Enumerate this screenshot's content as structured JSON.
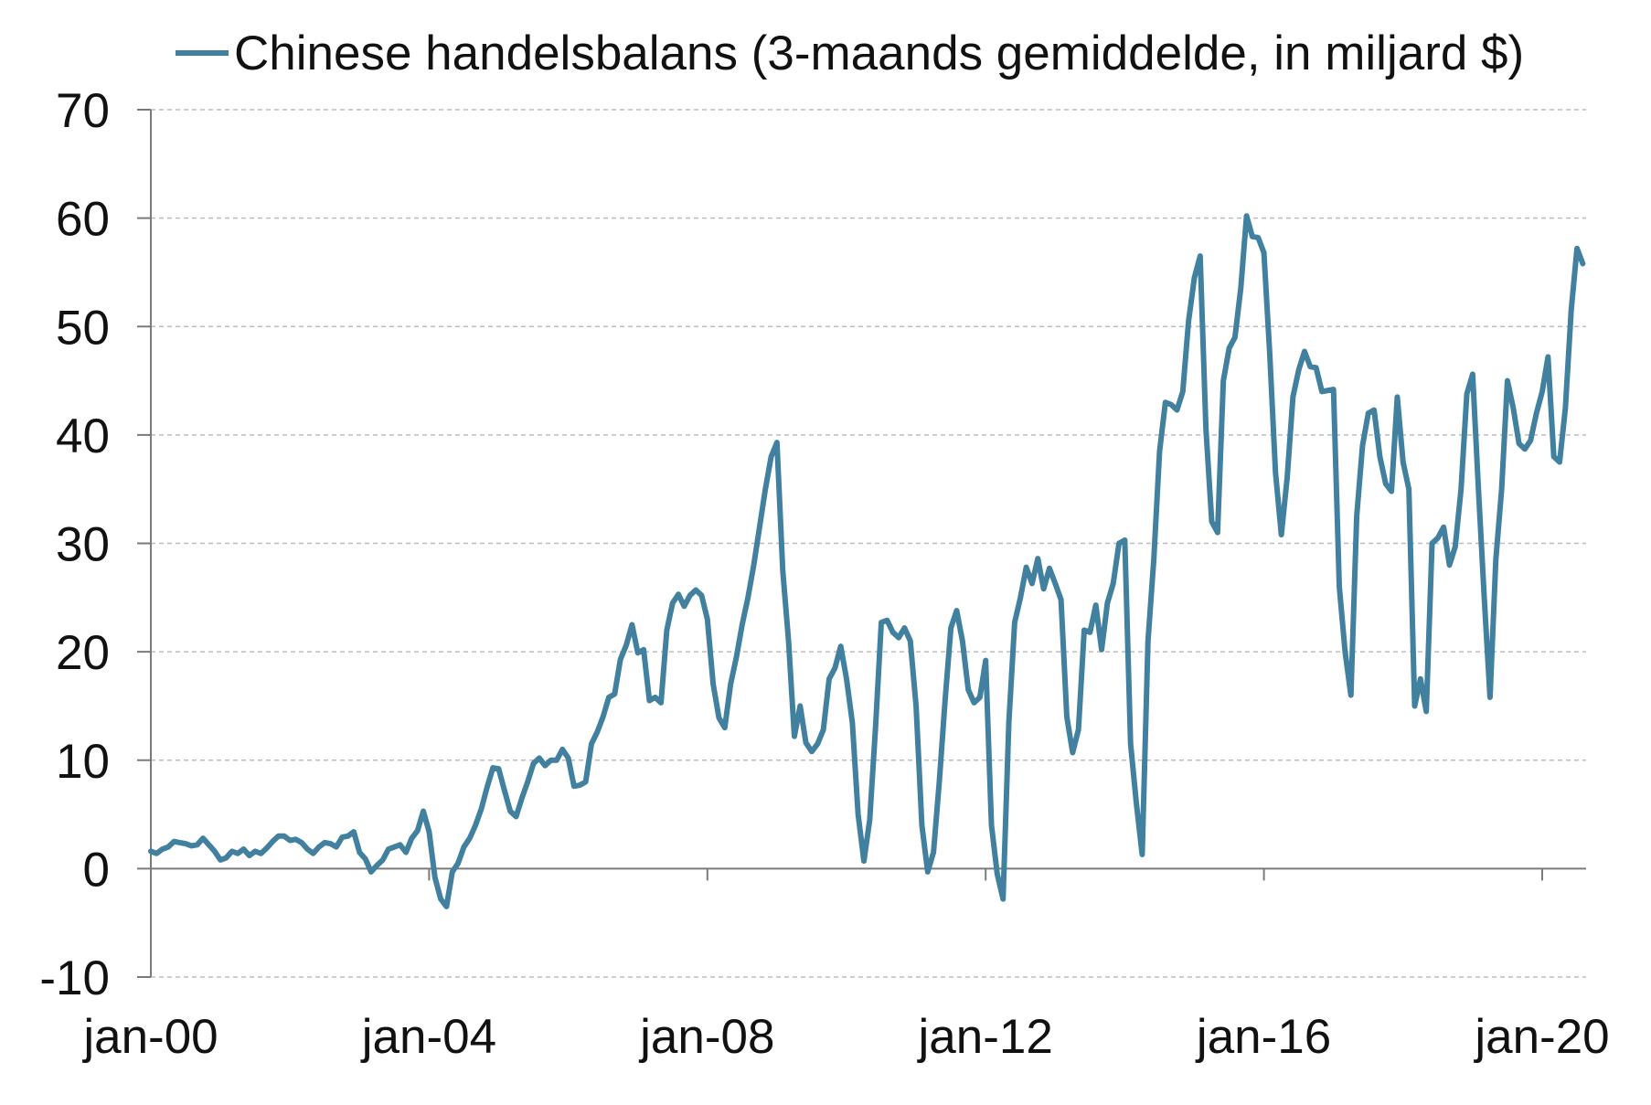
{
  "chart_data": {
    "type": "line",
    "ylim": [
      -10,
      70
    ],
    "yticks": [
      70,
      60,
      50,
      40,
      30,
      20,
      10,
      0,
      -10
    ],
    "xticks": [
      {
        "label": "jan-00",
        "date": "2000-01"
      },
      {
        "label": "jan-04",
        "date": "2004-01"
      },
      {
        "label": "jan-08",
        "date": "2008-01"
      },
      {
        "label": "jan-12",
        "date": "2012-01"
      },
      {
        "label": "jan-16",
        "date": "2016-01"
      },
      {
        "label": "jan-20",
        "date": "2020-01"
      }
    ],
    "grid": true,
    "legend_position": "top",
    "x": [
      "2000-01",
      "2000-02",
      "2000-03",
      "2000-04",
      "2000-05",
      "2000-06",
      "2000-07",
      "2000-08",
      "2000-09",
      "2000-10",
      "2000-11",
      "2000-12",
      "2001-01",
      "2001-02",
      "2001-03",
      "2001-04",
      "2001-05",
      "2001-06",
      "2001-07",
      "2001-08",
      "2001-09",
      "2001-10",
      "2001-11",
      "2001-12",
      "2002-01",
      "2002-02",
      "2002-03",
      "2002-04",
      "2002-05",
      "2002-06",
      "2002-07",
      "2002-08",
      "2002-09",
      "2002-10",
      "2002-11",
      "2002-12",
      "2003-01",
      "2003-02",
      "2003-03",
      "2003-04",
      "2003-05",
      "2003-06",
      "2003-07",
      "2003-08",
      "2003-09",
      "2003-10",
      "2003-11",
      "2003-12",
      "2004-01",
      "2004-02",
      "2004-03",
      "2004-04",
      "2004-05",
      "2004-06",
      "2004-07",
      "2004-08",
      "2004-09",
      "2004-10",
      "2004-11",
      "2004-12",
      "2005-01",
      "2005-02",
      "2005-03",
      "2005-04",
      "2005-05",
      "2005-06",
      "2005-07",
      "2005-08",
      "2005-09",
      "2005-10",
      "2005-11",
      "2005-12",
      "2006-01",
      "2006-02",
      "2006-03",
      "2006-04",
      "2006-05",
      "2006-06",
      "2006-07",
      "2006-08",
      "2006-09",
      "2006-10",
      "2006-11",
      "2006-12",
      "2007-01",
      "2007-02",
      "2007-03",
      "2007-04",
      "2007-05",
      "2007-06",
      "2007-07",
      "2007-08",
      "2007-09",
      "2007-10",
      "2007-11",
      "2007-12",
      "2008-01",
      "2008-02",
      "2008-03",
      "2008-04",
      "2008-05",
      "2008-06",
      "2008-07",
      "2008-08",
      "2008-09",
      "2008-10",
      "2008-11",
      "2008-12",
      "2009-01",
      "2009-02",
      "2009-03",
      "2009-04",
      "2009-05",
      "2009-06",
      "2009-07",
      "2009-08",
      "2009-09",
      "2009-10",
      "2009-11",
      "2009-12",
      "2010-01",
      "2010-02",
      "2010-03",
      "2010-04",
      "2010-05",
      "2010-06",
      "2010-07",
      "2010-08",
      "2010-09",
      "2010-10",
      "2010-11",
      "2010-12",
      "2011-01",
      "2011-02",
      "2011-03",
      "2011-04",
      "2011-05",
      "2011-06",
      "2011-07",
      "2011-08",
      "2011-09",
      "2011-10",
      "2011-11",
      "2011-12",
      "2012-01",
      "2012-02",
      "2012-03",
      "2012-04",
      "2012-05",
      "2012-06",
      "2012-07",
      "2012-08",
      "2012-09",
      "2012-10",
      "2012-11",
      "2012-12",
      "2013-01",
      "2013-02",
      "2013-03",
      "2013-04",
      "2013-05",
      "2013-06",
      "2013-07",
      "2013-08",
      "2013-09",
      "2013-10",
      "2013-11",
      "2013-12",
      "2014-01",
      "2014-02",
      "2014-03",
      "2014-04",
      "2014-05",
      "2014-06",
      "2014-07",
      "2014-08",
      "2014-09",
      "2014-10",
      "2014-11",
      "2014-12",
      "2015-01",
      "2015-02",
      "2015-03",
      "2015-04",
      "2015-05",
      "2015-06",
      "2015-07",
      "2015-08",
      "2015-09",
      "2015-10",
      "2015-11",
      "2015-12",
      "2016-01",
      "2016-02",
      "2016-03",
      "2016-04",
      "2016-05",
      "2016-06",
      "2016-07",
      "2016-08",
      "2016-09",
      "2016-10",
      "2016-11",
      "2016-12",
      "2017-01",
      "2017-02",
      "2017-03",
      "2017-04",
      "2017-05",
      "2017-06",
      "2017-07",
      "2017-08",
      "2017-09",
      "2017-10",
      "2017-11",
      "2017-12",
      "2018-01",
      "2018-02",
      "2018-03",
      "2018-04",
      "2018-05",
      "2018-06",
      "2018-07",
      "2018-08",
      "2018-09",
      "2018-10",
      "2018-11",
      "2018-12",
      "2019-01",
      "2019-02",
      "2019-03",
      "2019-04",
      "2019-05",
      "2019-06",
      "2019-07",
      "2019-08",
      "2019-09",
      "2019-10",
      "2019-11",
      "2019-12",
      "2020-01",
      "2020-02",
      "2020-03",
      "2020-04",
      "2020-05",
      "2020-06",
      "2020-07",
      "2020-08"
    ],
    "series": [
      {
        "name": "Chinese handelsbalans (3-maands gemiddelde, in miljard $)",
        "color": "#41809f",
        "values": [
          1.6,
          1.4,
          1.8,
          2.0,
          2.5,
          2.4,
          2.3,
          2.1,
          2.2,
          2.8,
          2.2,
          1.6,
          0.8,
          1.0,
          1.6,
          1.4,
          1.8,
          1.2,
          1.6,
          1.4,
          1.9,
          2.5,
          3.0,
          3.0,
          2.6,
          2.7,
          2.4,
          1.8,
          1.4,
          2.0,
          2.4,
          2.3,
          2.0,
          2.9,
          3.0,
          3.4,
          1.5,
          0.9,
          -0.3,
          0.3,
          0.8,
          1.8,
          2.0,
          2.2,
          1.5,
          2.8,
          3.5,
          5.3,
          3.4,
          -0.8,
          -2.8,
          -3.5,
          -0.3,
          0.5,
          2.0,
          2.8,
          4.0,
          5.5,
          7.5,
          9.3,
          9.2,
          7.2,
          5.3,
          4.8,
          6.5,
          8.0,
          9.7,
          10.2,
          9.5,
          10.0,
          10.0,
          11.0,
          10.2,
          7.6,
          7.7,
          8.0,
          11.5,
          12.6,
          14.0,
          15.8,
          16.1,
          19.3,
          20.6,
          22.5,
          19.9,
          20.2,
          15.5,
          15.8,
          15.3,
          22.0,
          24.5,
          25.3,
          24.2,
          25.2,
          25.7,
          25.2,
          23.0,
          17.0,
          13.9,
          13.0,
          17.0,
          19.5,
          22.5,
          25.0,
          28.0,
          31.5,
          35.0,
          38.0,
          39.3,
          27.5,
          21.0,
          12.2,
          15.0,
          11.6,
          10.8,
          11.5,
          12.8,
          17.5,
          18.5,
          20.5,
          17.5,
          13.5,
          5.0,
          0.7,
          4.5,
          13.0,
          22.7,
          22.9,
          21.8,
          21.3,
          22.2,
          21.0,
          15.0,
          4.0,
          -0.3,
          1.5,
          8.0,
          15.5,
          22.2,
          23.8,
          21.0,
          16.5,
          15.3,
          15.8,
          19.2,
          4.0,
          -0.5,
          -2.8,
          13.5,
          22.7,
          25.0,
          27.8,
          26.3,
          28.6,
          25.8,
          27.7,
          26.3,
          24.8,
          14.0,
          10.7,
          12.8,
          22.0,
          21.8,
          24.3,
          20.2,
          24.5,
          26.3,
          30.0,
          30.3,
          11.5,
          6.0,
          1.3,
          21.0,
          28.5,
          38.5,
          43.0,
          42.8,
          42.3,
          44.0,
          50.5,
          54.5,
          56.5,
          40.5,
          32.0,
          31.0,
          45.0,
          48.0,
          49.0,
          53.5,
          60.2,
          58.3,
          58.2,
          56.8,
          47.5,
          36.5,
          30.8,
          36.0,
          43.5,
          46.0,
          47.7,
          46.3,
          46.2,
          44.0,
          44.1,
          44.2,
          26.0,
          20.0,
          16.0,
          32.5,
          39.0,
          42.0,
          42.3,
          38.0,
          35.5,
          34.8,
          43.5,
          37.5,
          35.0,
          15.0,
          17.5,
          14.5,
          30.0,
          30.5,
          31.5,
          28.0,
          29.7,
          35.0,
          43.8,
          45.6,
          35.0,
          25.0,
          15.8,
          28.5,
          35.0,
          45.0,
          42.5,
          39.2,
          38.7,
          39.5,
          42.0,
          44.0,
          47.2,
          38.0,
          37.5,
          42.5,
          51.5,
          57.2,
          55.8
        ]
      }
    ]
  }
}
